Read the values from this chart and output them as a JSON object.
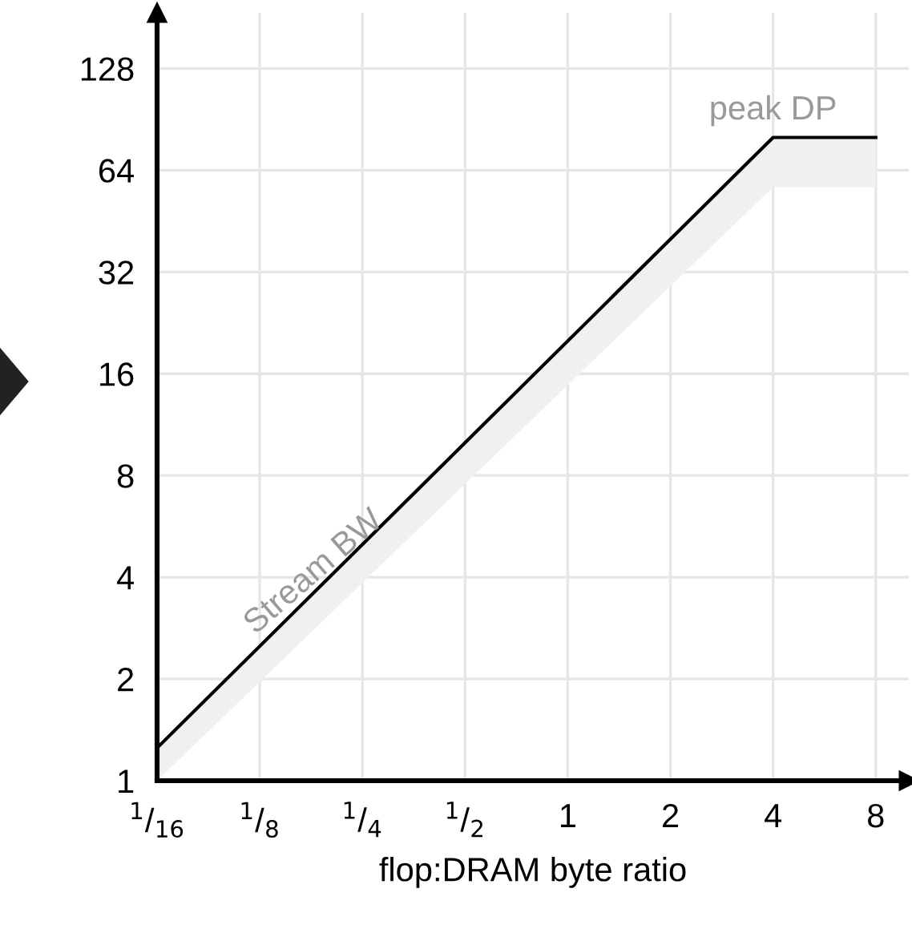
{
  "chart_data": {
    "type": "line",
    "xlabel": "flop:DRAM byte ratio",
    "log": "xy",
    "xlim": [
      0.0625,
      10
    ],
    "ylim": [
      1,
      187
    ],
    "xticks": [
      {
        "value": 0.0625,
        "label": "$^{1}$/$_{16}$"
      },
      {
        "value": 0.125,
        "label": "$^{1}$/$_{8}$"
      },
      {
        "value": 0.25,
        "label": "$^{1}$/$_{4}$"
      },
      {
        "value": 0.5,
        "label": "$^{1}$/$_{2}$"
      },
      1,
      2,
      4,
      8
    ],
    "yticks": [
      1,
      2,
      4,
      8,
      16,
      32,
      64,
      128
    ],
    "grid": true,
    "marker": "none",
    "line_style": "solid",
    "series": [
      {
        "color": "#000000",
        "x": [
          0.0625,
          4,
          8
        ],
        "values": [
          1.25,
          80,
          80
        ],
        "lower": [
          1,
          57,
          57
        ],
        "upper": [
          1.25,
          80,
          80
        ]
      }
    ],
    "annotations": [
      {
        "text": "Stream BW",
        "x": 0.125,
        "y": 2.6
      },
      {
        "text": "peak DP",
        "x": 4,
        "y": 80
      }
    ]
  }
}
